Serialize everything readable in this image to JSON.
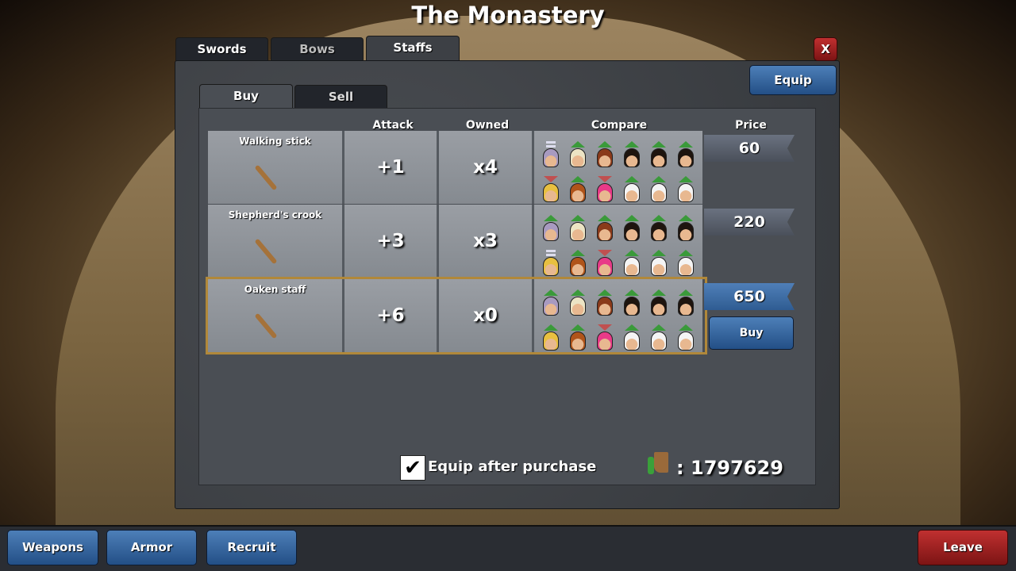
{
  "title": "The Monastery",
  "weapon_tabs": [
    {
      "label": "Swords"
    },
    {
      "label": "Bows"
    },
    {
      "label": "Staffs",
      "active": true
    }
  ],
  "mode_tabs": [
    {
      "label": "Buy",
      "active": true
    },
    {
      "label": "Sell"
    }
  ],
  "close_label": "X",
  "equip_label": "Equip",
  "headers": {
    "attack": "Attack",
    "owned": "Owned",
    "compare": "Compare",
    "price": "Price"
  },
  "hero_hair_colors": [
    "#a89ac0",
    "#ece4c4",
    "#8a3a1a",
    "#1e140e",
    "#1e140e",
    "#1e140e",
    "#e8c040",
    "#b0541a",
    "#e83a88",
    "#f4f4f4",
    "#f4f4f4",
    "#f4f4f4"
  ],
  "items": [
    {
      "name": "Walking stick",
      "attack": "+1",
      "owned": "x4",
      "price": "60",
      "compare": [
        "eq",
        "up",
        "up",
        "up",
        "up",
        "up",
        "down",
        "up",
        "down",
        "up",
        "up",
        "up"
      ]
    },
    {
      "name": "Shepherd's crook",
      "attack": "+3",
      "owned": "x3",
      "price": "220",
      "compare": [
        "up",
        "up",
        "up",
        "up",
        "up",
        "up",
        "eq",
        "up",
        "down",
        "up",
        "up",
        "up"
      ]
    },
    {
      "name": "Oaken staff",
      "attack": "+6",
      "owned": "x0",
      "price": "650",
      "selected": true,
      "compare": [
        "up",
        "up",
        "up",
        "up",
        "up",
        "up",
        "up",
        "up",
        "down",
        "up",
        "up",
        "up"
      ]
    }
  ],
  "buy_label": "Buy",
  "equip_after_purchase": {
    "label": "Equip after purchase",
    "checked": true,
    "check_glyph": "✔"
  },
  "gold": {
    "separator": ":",
    "amount": "1797629"
  },
  "bottom_nav": [
    {
      "label": "Weapons"
    },
    {
      "label": "Armor"
    },
    {
      "label": "Recruit"
    }
  ],
  "leave_label": "Leave"
}
